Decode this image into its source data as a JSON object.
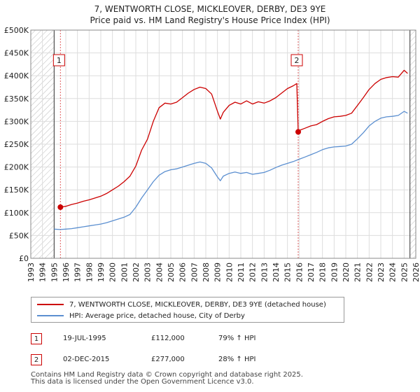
{
  "chart_data": {
    "type": "line",
    "title": "7, WENTWORTH CLOSE, MICKLEOVER, DERBY, DE3 9YE",
    "subtitle": "Price paid vs. HM Land Registry's House Price Index (HPI)",
    "xlim": [
      1993,
      2026
    ],
    "ylim": [
      0,
      500000
    ],
    "x_ticks": [
      1993,
      1994,
      1995,
      1996,
      1997,
      1998,
      1999,
      2000,
      2001,
      2002,
      2003,
      2004,
      2005,
      2006,
      2007,
      2008,
      2009,
      2010,
      2011,
      2012,
      2013,
      2014,
      2015,
      2016,
      2017,
      2018,
      2019,
      2020,
      2021,
      2022,
      2023,
      2024,
      2025,
      2026
    ],
    "y_ticks": [
      0,
      50000,
      100000,
      150000,
      200000,
      250000,
      300000,
      350000,
      400000,
      450000,
      500000
    ],
    "y_tick_labels": [
      "£0",
      "£50K",
      "£100K",
      "£150K",
      "£200K",
      "£250K",
      "£300K",
      "£350K",
      "£400K",
      "£450K",
      "£500K"
    ],
    "grid": true,
    "hatched_before": 1995.0,
    "hatched_after": 2025.5,
    "series": [
      {
        "name": "7, WENTWORTH CLOSE, MICKLEOVER, DERBY, DE3 9YE (detached house)",
        "color": "#cc0000",
        "x": [
          1995.54,
          1996.0,
          1996.5,
          1997.0,
          1997.5,
          1998.0,
          1998.5,
          1999.0,
          1999.5,
          2000.0,
          2000.5,
          2001.0,
          2001.5,
          2002.0,
          2002.5,
          2003.0,
          2003.5,
          2004.0,
          2004.5,
          2005.0,
          2005.5,
          2006.0,
          2006.5,
          2007.0,
          2007.5,
          2008.0,
          2008.5,
          2009.0,
          2009.25,
          2009.5,
          2010.0,
          2010.5,
          2011.0,
          2011.5,
          2012.0,
          2012.5,
          2013.0,
          2013.5,
          2014.0,
          2014.5,
          2015.0,
          2015.5,
          2015.8,
          2015.92,
          2016.0,
          2016.5,
          2017.0,
          2017.5,
          2018.0,
          2018.5,
          2019.0,
          2019.5,
          2020.0,
          2020.5,
          2021.0,
          2021.5,
          2022.0,
          2022.5,
          2023.0,
          2023.5,
          2024.0,
          2024.5,
          2025.0,
          2025.3
        ],
        "values": [
          112000,
          114000,
          118000,
          121000,
          125000,
          128000,
          132000,
          136000,
          142000,
          150000,
          158000,
          168000,
          180000,
          202000,
          237000,
          261000,
          300000,
          330000,
          340000,
          338000,
          342000,
          352000,
          362000,
          370000,
          375000,
          372000,
          360000,
          322000,
          305000,
          320000,
          335000,
          342000,
          338000,
          345000,
          338000,
          343000,
          340000,
          345000,
          352000,
          362000,
          372000,
          378000,
          383000,
          277000,
          280000,
          285000,
          290000,
          293000,
          300000,
          306000,
          310000,
          311000,
          313000,
          318000,
          335000,
          352000,
          370000,
          383000,
          392000,
          396000,
          398000,
          397000,
          412000,
          405000
        ],
        "markers": [
          {
            "x": 1995.54,
            "y": 112000
          },
          {
            "x": 2015.92,
            "y": 277000
          }
        ]
      },
      {
        "name": "HPI: Average price, detached house, City of Derby",
        "color": "#5b8fd0",
        "x": [
          1995.0,
          1995.5,
          1996.0,
          1996.5,
          1997.0,
          1997.5,
          1998.0,
          1998.5,
          1999.0,
          1999.5,
          2000.0,
          2000.5,
          2001.0,
          2001.5,
          2002.0,
          2002.5,
          2003.0,
          2003.5,
          2004.0,
          2004.5,
          2005.0,
          2005.5,
          2006.0,
          2006.5,
          2007.0,
          2007.5,
          2008.0,
          2008.5,
          2009.0,
          2009.25,
          2009.5,
          2010.0,
          2010.5,
          2011.0,
          2011.5,
          2012.0,
          2012.5,
          2013.0,
          2013.5,
          2014.0,
          2014.5,
          2015.0,
          2015.5,
          2016.0,
          2016.5,
          2017.0,
          2017.5,
          2018.0,
          2018.5,
          2019.0,
          2019.5,
          2020.0,
          2020.5,
          2021.0,
          2021.5,
          2022.0,
          2022.5,
          2023.0,
          2023.5,
          2024.0,
          2024.5,
          2025.0,
          2025.3
        ],
        "values": [
          64000,
          63000,
          64000,
          65000,
          67000,
          69000,
          71000,
          73000,
          75000,
          78000,
          82000,
          86000,
          90000,
          96000,
          112000,
          132000,
          150000,
          168000,
          182000,
          190000,
          194000,
          196000,
          200000,
          204000,
          208000,
          211000,
          208000,
          198000,
          178000,
          170000,
          180000,
          186000,
          189000,
          186000,
          188000,
          184000,
          186000,
          188000,
          193000,
          199000,
          204000,
          208000,
          212000,
          217000,
          222000,
          227000,
          232000,
          238000,
          242000,
          244000,
          245000,
          246000,
          250000,
          262000,
          275000,
          290000,
          300000,
          307000,
          310000,
          311000,
          313000,
          322000,
          318000
        ]
      }
    ],
    "annotations": [
      {
        "label": "1",
        "x": 1995.54
      },
      {
        "label": "2",
        "x": 2015.92
      }
    ]
  },
  "legend": {
    "items": [
      {
        "label": "7, WENTWORTH CLOSE, MICKLEOVER, DERBY, DE3 9YE (detached house)",
        "color": "#cc0000"
      },
      {
        "label": "HPI: Average price, detached house, City of Derby",
        "color": "#5b8fd0"
      }
    ]
  },
  "transactions": [
    {
      "badge": "1",
      "date": "19-JUL-1995",
      "price": "£112,000",
      "hpi": "79% ↑ HPI"
    },
    {
      "badge": "2",
      "date": "02-DEC-2015",
      "price": "£277,000",
      "hpi": "28% ↑ HPI"
    }
  ],
  "footer": {
    "line1": "Contains HM Land Registry data © Crown copyright and database right 2025.",
    "line2": "This data is licensed under the Open Government Licence v3.0."
  }
}
